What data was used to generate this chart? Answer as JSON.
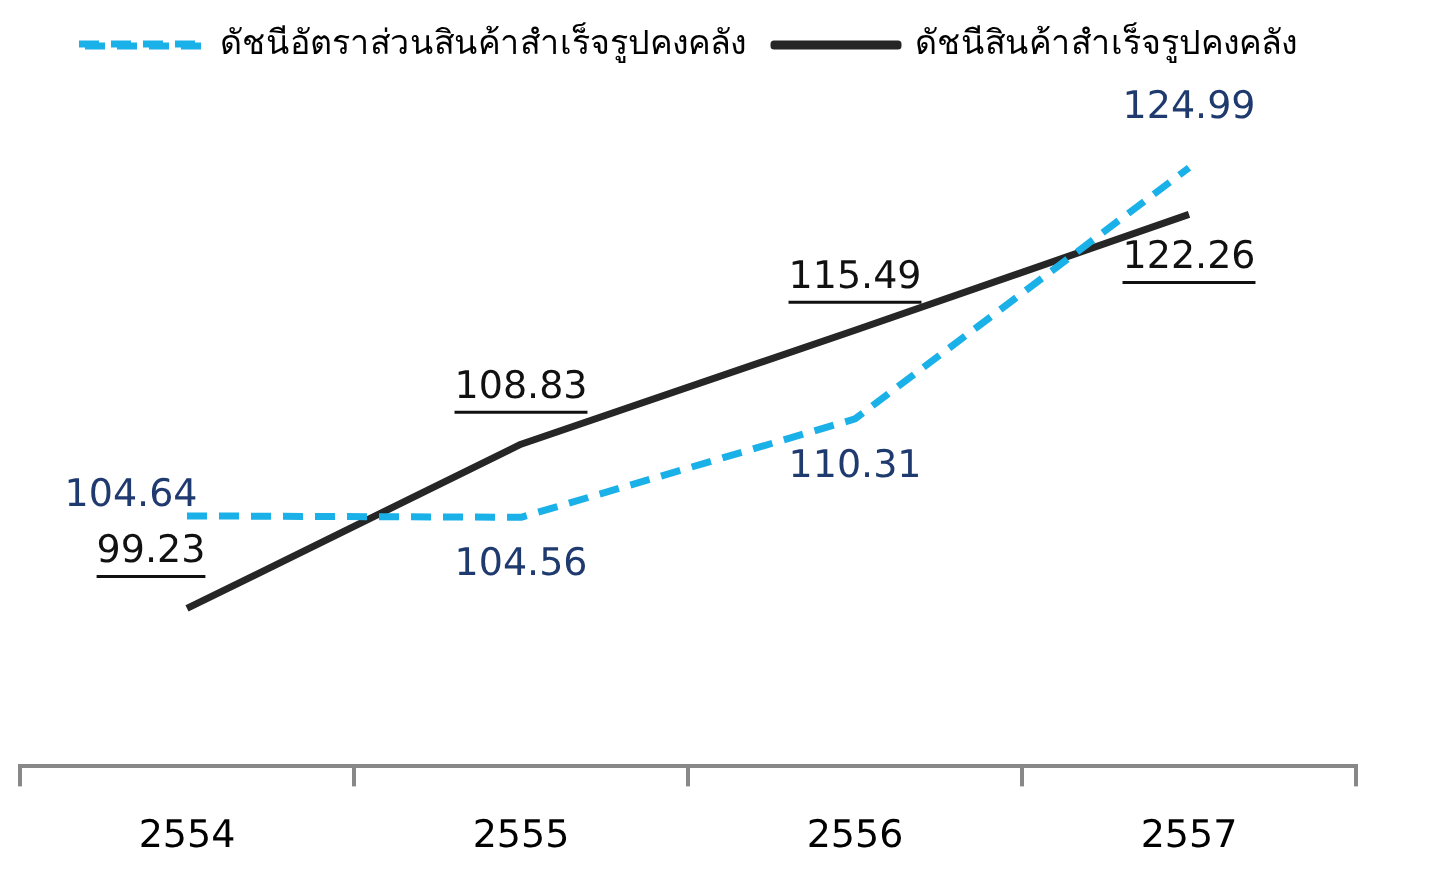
{
  "chart_data": {
    "type": "line",
    "categories": [
      "2554",
      "2555",
      "2556",
      "2557"
    ],
    "series": [
      {
        "name": "ดัชนีอัตราส่วนสินค้าสำเร็จรูปคงคลัง",
        "color": "#1ab0e8",
        "line_style": "dashed",
        "values": [
          104.64,
          104.56,
          110.31,
          124.99
        ]
      },
      {
        "name": "ดัชนีสินค้าสำเร็จรูปคงคลัง",
        "color": "#262626",
        "line_style": "solid",
        "values": [
          99.23,
          108.83,
          115.49,
          122.26
        ]
      }
    ],
    "tick_labels": "x",
    "grid": false,
    "legend": "top",
    "marker": "none",
    "data_labels": true
  }
}
